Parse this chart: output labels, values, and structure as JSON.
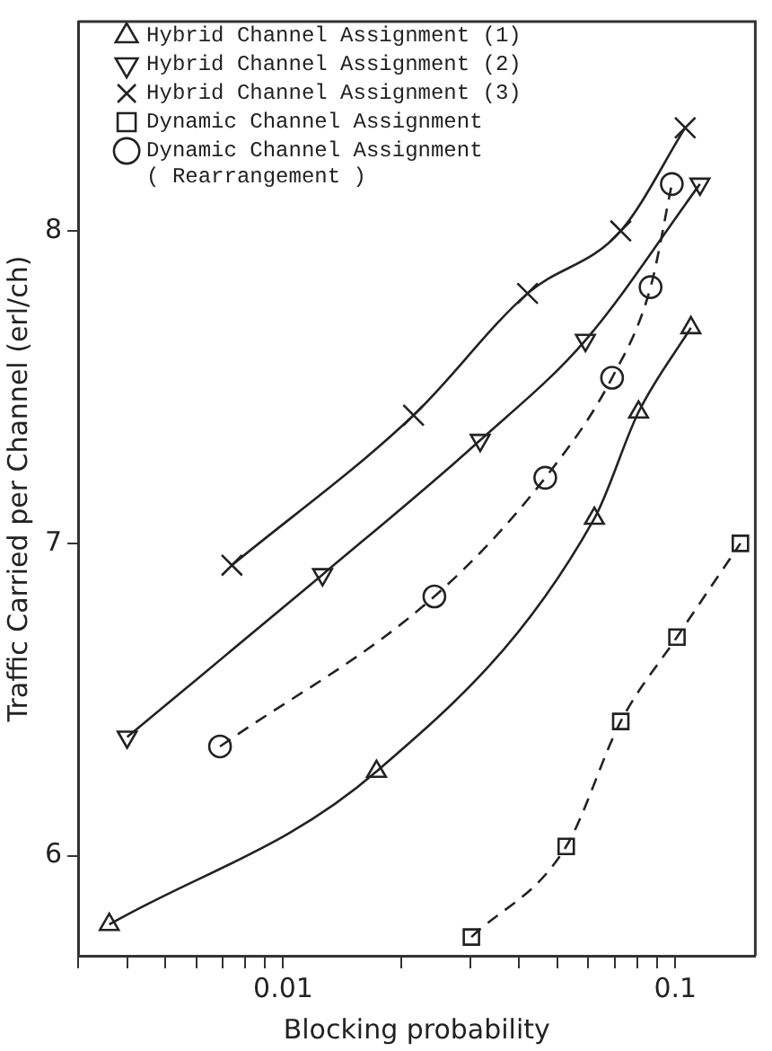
{
  "chart_data": {
    "type": "line",
    "xlabel": "Blocking probability",
    "ylabel": "Traffic Carried per Channel (erl/ch)",
    "log": "x",
    "xlim": [
      0.003,
      0.16
    ],
    "ylim": [
      5.68,
      8.67
    ],
    "xticks": [
      {
        "value": 0.003,
        "label": null
      },
      {
        "value": 0.004,
        "label": null
      },
      {
        "value": 0.005,
        "label": null
      },
      {
        "value": 0.006,
        "label": null
      },
      {
        "value": 0.007,
        "label": null
      },
      {
        "value": 0.008,
        "label": null
      },
      {
        "value": 0.009,
        "label": null
      },
      0.01,
      {
        "value": 0.02,
        "label": null
      },
      {
        "value": 0.03,
        "label": null
      },
      {
        "value": 0.04,
        "label": null
      },
      {
        "value": 0.05,
        "label": null
      },
      {
        "value": 0.06,
        "label": null
      },
      {
        "value": 0.07,
        "label": null
      },
      {
        "value": 0.08,
        "label": null
      },
      {
        "value": 0.09,
        "label": null
      },
      0.1
    ],
    "yticks": [
      6,
      7,
      8
    ],
    "grid": false,
    "legend": "top left",
    "series": [
      {
        "name": "Hybrid Channel Assignment (1)",
        "color": "#222222",
        "marker": "triangle",
        "line_style": "solid",
        "x": [
          0.0036,
          0.0173,
          0.0622,
          0.0806,
          0.1096
        ],
        "values": [
          5.78,
          6.27,
          7.08,
          7.42,
          7.69
        ]
      },
      {
        "name": "Hybrid Channel Assignment (2)",
        "color": "#222222",
        "marker": "triangle-down",
        "line_style": "solid",
        "x": [
          0.004,
          0.0126,
          0.0318,
          0.059,
          0.1156
        ],
        "values": [
          6.38,
          6.9,
          7.33,
          7.65,
          8.15
        ]
      },
      {
        "name": "Hybrid Channel Assignment (3)",
        "color": "#222222",
        "marker": "cross",
        "line_style": "solid",
        "x": [
          0.0074,
          0.0215,
          0.042,
          0.0726,
          0.106
        ],
        "values": [
          6.93,
          7.41,
          7.8,
          8.0,
          8.33
        ]
      },
      {
        "name": "Dynamic Channel Assignment",
        "color": "#222222",
        "marker": "square",
        "line_style": "dashed",
        "x": [
          0.0302,
          0.0527,
          0.0726,
          0.101,
          0.1466
        ],
        "values": [
          5.74,
          6.03,
          6.43,
          6.7,
          7.0
        ]
      },
      {
        "name": "Dynamic Channel Assignment\n( Rearrangement )",
        "color": "#222222",
        "marker": "circle",
        "line_style": "dashed",
        "x": [
          0.0069,
          0.0243,
          0.0466,
          0.069,
          0.0865,
          0.098
        ],
        "values": [
          6.35,
          6.83,
          7.21,
          7.53,
          7.82,
          8.15
        ]
      }
    ]
  }
}
